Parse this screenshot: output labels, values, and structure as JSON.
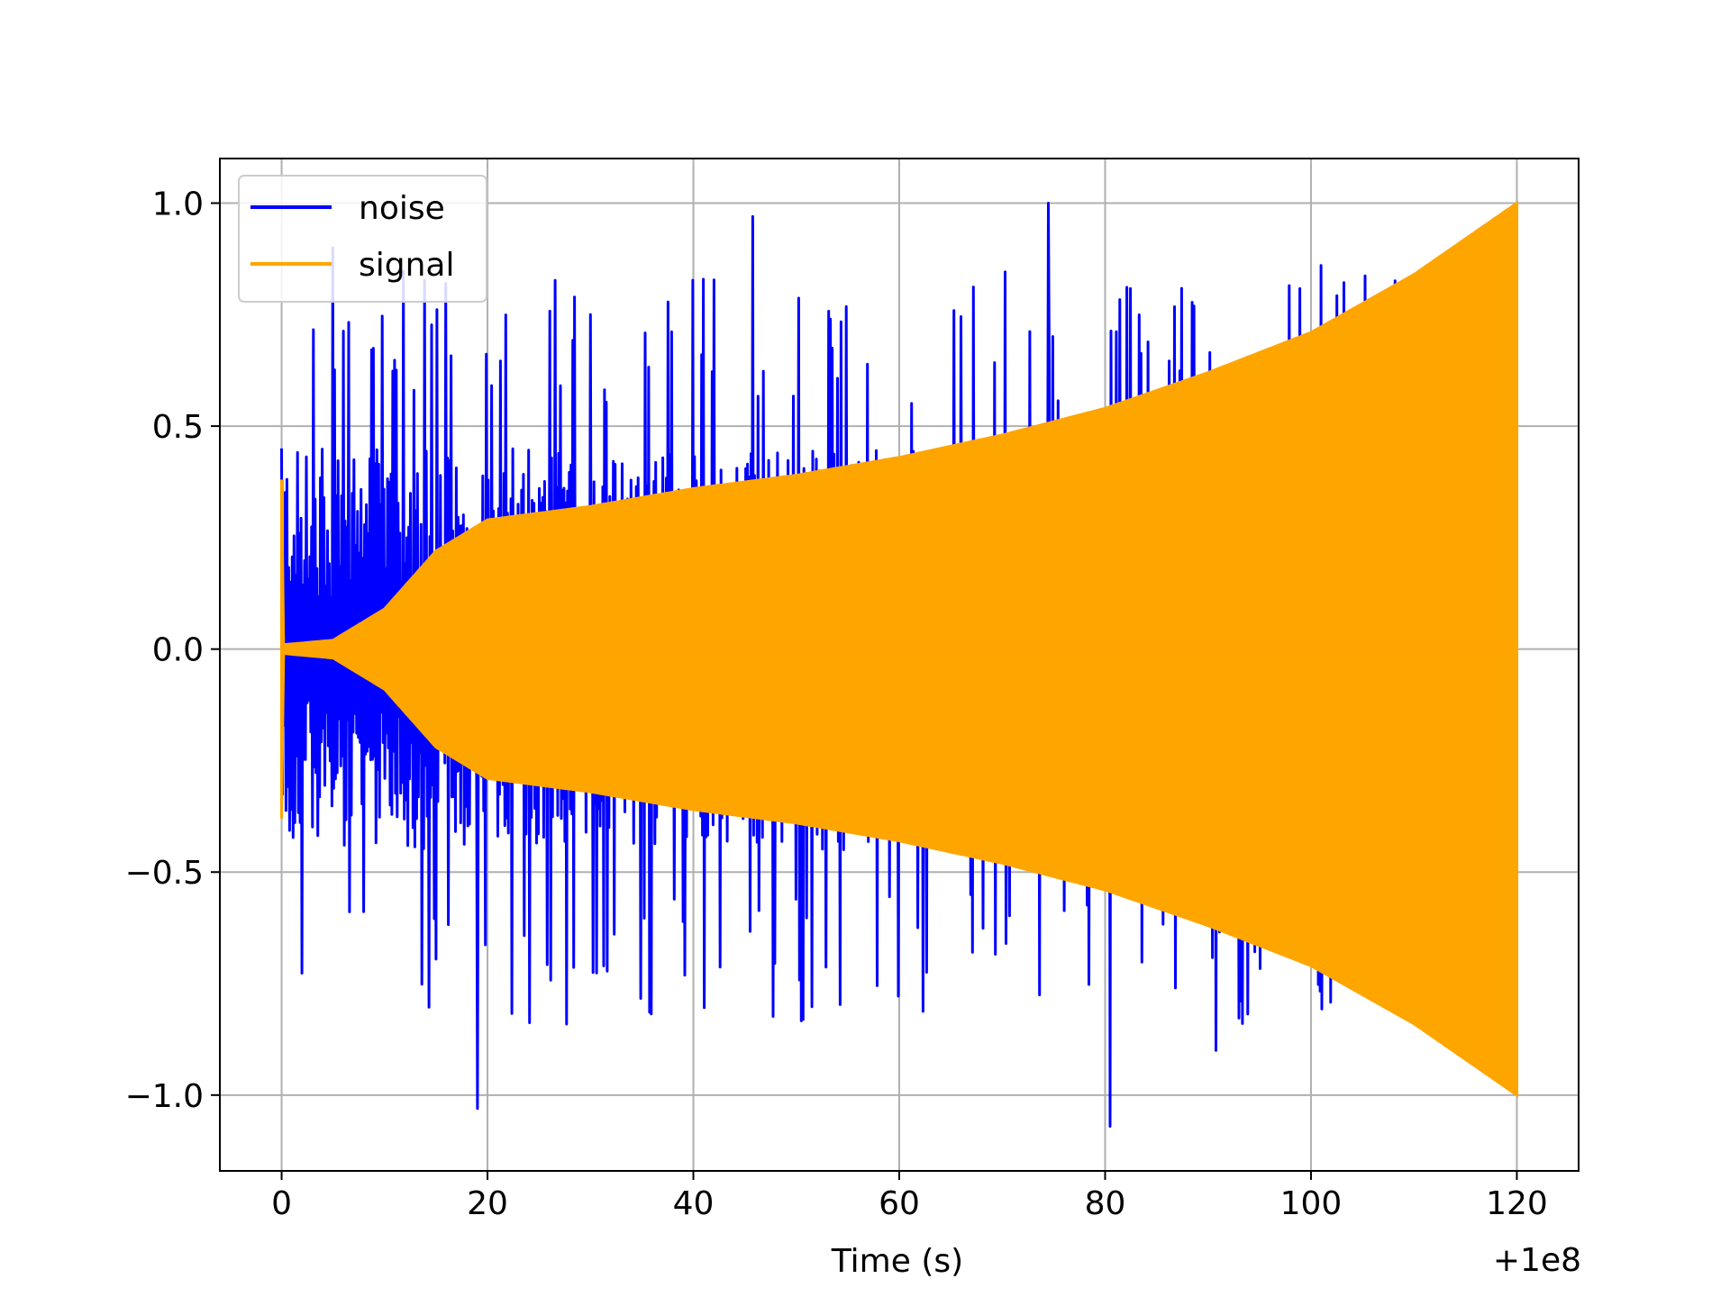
{
  "chart_data": {
    "type": "line",
    "title": "",
    "xlabel": "Time (s)",
    "ylabel": "",
    "x_offset_label": "+1e8",
    "xlim": [
      -6,
      126
    ],
    "ylim": [
      -1.17,
      1.1
    ],
    "x_ticks": [
      0,
      20,
      40,
      60,
      80,
      100,
      120
    ],
    "x_tick_labels": [
      "0",
      "20",
      "40",
      "60",
      "80",
      "100",
      "120"
    ],
    "y_ticks": [
      -1.0,
      -0.5,
      0.0,
      0.5,
      1.0
    ],
    "y_tick_labels": [
      "−1.0",
      "−0.5",
      "0.0",
      "0.5",
      "1.0"
    ],
    "grid": true,
    "legend_position": "top-left",
    "x_range": [
      0,
      120
    ],
    "series": [
      {
        "name": "noise",
        "color": "#0000ff",
        "peak_envelope_x": [
          0,
          5,
          19,
          30,
          45.8,
          74.5,
          80.5,
          90.8,
          101
        ],
        "peak_envelope_y": [
          0.45,
          0.9,
          -1.03,
          0.75,
          0.97,
          1.0,
          -1.07,
          -0.9,
          0.86
        ],
        "typical_amplitude": 0.45
      },
      {
        "name": "signal",
        "color": "#ffa500",
        "envelope_x": [
          0,
          0.2,
          5,
          10,
          15,
          20,
          30,
          40,
          50,
          60,
          70,
          80,
          90,
          100,
          110,
          120
        ],
        "envelope_y": [
          0.38,
          0.01,
          0.02,
          0.09,
          0.22,
          0.29,
          0.32,
          0.36,
          0.39,
          0.43,
          0.48,
          0.54,
          0.62,
          0.71,
          0.84,
          1.0
        ]
      }
    ]
  }
}
